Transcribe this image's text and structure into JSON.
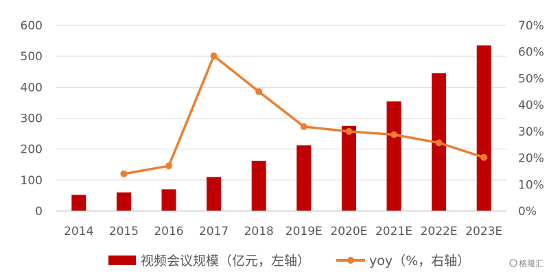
{
  "chart_data": {
    "type": "bar",
    "categories": [
      "2014",
      "2015",
      "2016",
      "2017",
      "2018",
      "2019E",
      "2020E",
      "2021E",
      "2022E",
      "2023E"
    ],
    "series": [
      {
        "name": "视频会议规模（亿元，左轴）",
        "type": "bar",
        "axis": "left",
        "color": "#c00000",
        "values": [
          52,
          60,
          70,
          110,
          162,
          212,
          275,
          354,
          445,
          535
        ]
      },
      {
        "name": "yoy（%，右轴）",
        "type": "line",
        "axis": "right",
        "color": "#ed7d31",
        "values": [
          null,
          14.0,
          17.0,
          58.5,
          45.0,
          31.8,
          30.0,
          28.8,
          25.7,
          20.2
        ]
      }
    ],
    "y_left": {
      "min": 0,
      "max": 600,
      "step": 100,
      "ticks": [
        "0",
        "100",
        "200",
        "300",
        "400",
        "500",
        "600"
      ]
    },
    "y_right": {
      "min": 0,
      "max": 70,
      "step": 10,
      "ticks": [
        "0%",
        "10%",
        "20%",
        "30%",
        "40%",
        "50%",
        "60%",
        "70%"
      ]
    },
    "grid": true,
    "legend": {
      "position": "bottom",
      "entries": [
        "视频会议规模（亿元，左轴）",
        "yoy（%，右轴）"
      ]
    }
  },
  "watermark": "格隆汇"
}
